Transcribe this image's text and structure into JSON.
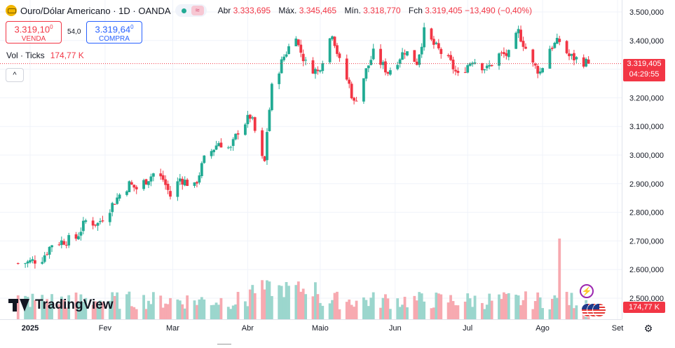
{
  "header": {
    "symbol_title": "Ouro/Dólar Americano · 1D · OANDA",
    "symbol_icon": "gold-bars-icon",
    "ohlc": [
      {
        "key": "Abr",
        "value": "3.333,695"
      },
      {
        "key": "Máx.",
        "value": "3.345,465"
      },
      {
        "key": "Mín.",
        "value": "3.318,770"
      },
      {
        "key": "Fch",
        "value": "3.319,405 −13,490 (−0,40%)"
      }
    ]
  },
  "trade": {
    "sell_price": "3.319,10",
    "sell_sup": "0",
    "sell_label": "VENDA",
    "spread": "54,0",
    "buy_price": "3.319,64",
    "buy_sup": "0",
    "buy_label": "COMPRA"
  },
  "volume_legend": {
    "label": "Vol · Ticks",
    "value": "174,77 K"
  },
  "price_scale": {
    "ticks": [
      "3.500,000",
      "3.400,000",
      "3.300,000",
      "3.200,000",
      "3.100,000",
      "3.000,000",
      "2.900,000",
      "2.800,000",
      "2.700,000",
      "2.600,000",
      "2.500,000"
    ],
    "last_price": "3.319,405",
    "countdown": "04:29:55",
    "volume_tag": "174,77 K"
  },
  "time_scale": {
    "ticks": [
      "2025",
      "Fev",
      "Mar",
      "Abr",
      "Maio",
      "Jun",
      "Jul",
      "Ago",
      "Set"
    ]
  },
  "brand": {
    "logo_text": "TradingView"
  },
  "colors": {
    "up": "#22ab94",
    "down": "#f23645",
    "vol_up": "#9bd6cd",
    "vol_down": "#f7a9b0",
    "grid": "#f0f3fa"
  },
  "chart_data": {
    "type": "candlestick",
    "title": "Ouro/Dólar Americano · 1D · OANDA",
    "ylim": [
      2500,
      3550
    ],
    "y_ticks": [
      2500,
      2600,
      2700,
      2800,
      2900,
      3000,
      3100,
      3200,
      3300,
      3400,
      3500
    ],
    "x_ticks": [
      "2025",
      "Fev",
      "Mar",
      "Abr",
      "Maio",
      "Jun",
      "Jul",
      "Ago",
      "Set"
    ],
    "grid": true,
    "month_anchors": [
      {
        "label": "2025",
        "date": "2025-01-01"
      },
      {
        "label": "Fev",
        "date": "2025-02-01"
      },
      {
        "label": "Mar",
        "date": "2025-03-01"
      },
      {
        "label": "Abr",
        "date": "2025-04-01"
      },
      {
        "label": "Maio",
        "date": "2025-05-01"
      },
      {
        "label": "Jun",
        "date": "2025-06-01"
      },
      {
        "label": "Jul",
        "date": "2025-07-01"
      },
      {
        "label": "Ago",
        "date": "2025-08-01"
      },
      {
        "label": "Set",
        "date": "2025-09-01"
      }
    ],
    "keypoints": [
      {
        "date": "2024-12-27",
        "close": 2622
      },
      {
        "date": "2024-12-31",
        "close": 2625
      },
      {
        "date": "2025-01-06",
        "close": 2640
      },
      {
        "date": "2025-01-10",
        "close": 2690
      },
      {
        "date": "2025-01-15",
        "close": 2700
      },
      {
        "date": "2025-01-20",
        "close": 2710
      },
      {
        "date": "2025-01-24",
        "close": 2770
      },
      {
        "date": "2025-01-29",
        "close": 2760
      },
      {
        "date": "2025-02-03",
        "close": 2815
      },
      {
        "date": "2025-02-07",
        "close": 2862
      },
      {
        "date": "2025-02-11",
        "close": 2898
      },
      {
        "date": "2025-02-14",
        "close": 2882
      },
      {
        "date": "2025-02-21",
        "close": 2935
      },
      {
        "date": "2025-02-25",
        "close": 2915
      },
      {
        "date": "2025-02-28",
        "close": 2857
      },
      {
        "date": "2025-03-04",
        "close": 2918
      },
      {
        "date": "2025-03-10",
        "close": 2888
      },
      {
        "date": "2025-03-14",
        "close": 2984
      },
      {
        "date": "2025-03-20",
        "close": 3045
      },
      {
        "date": "2025-03-25",
        "close": 3020
      },
      {
        "date": "2025-03-28",
        "close": 3085
      },
      {
        "date": "2025-04-02",
        "close": 3135
      },
      {
        "date": "2025-04-03",
        "close": 3115
      },
      {
        "date": "2025-04-07",
        "close": 2985
      },
      {
        "date": "2025-04-08",
        "close": 2975
      },
      {
        "date": "2025-04-09",
        "close": 3085
      },
      {
        "date": "2025-04-11",
        "close": 3235
      },
      {
        "date": "2025-04-16",
        "close": 3345
      },
      {
        "date": "2025-04-21",
        "close": 3425
      },
      {
        "date": "2025-04-22",
        "close": 3380
      },
      {
        "date": "2025-04-25",
        "close": 3320
      },
      {
        "date": "2025-04-30",
        "close": 3290
      },
      {
        "date": "2025-05-06",
        "close": 3430
      },
      {
        "date": "2025-05-09",
        "close": 3325
      },
      {
        "date": "2025-05-13",
        "close": 3245
      },
      {
        "date": "2025-05-15",
        "close": 3180
      },
      {
        "date": "2025-05-20",
        "close": 3295
      },
      {
        "date": "2025-05-23",
        "close": 3355
      },
      {
        "date": "2025-05-29",
        "close": 3290
      },
      {
        "date": "2025-06-05",
        "close": 3365
      },
      {
        "date": "2025-06-10",
        "close": 3325
      },
      {
        "date": "2025-06-13",
        "close": 3430
      },
      {
        "date": "2025-06-17",
        "close": 3385
      },
      {
        "date": "2025-06-24",
        "close": 3320
      },
      {
        "date": "2025-06-27",
        "close": 3275
      },
      {
        "date": "2025-07-03",
        "close": 3335
      },
      {
        "date": "2025-07-09",
        "close": 3300
      },
      {
        "date": "2025-07-14",
        "close": 3350
      },
      {
        "date": "2025-07-18",
        "close": 3350
      },
      {
        "date": "2025-07-22",
        "close": 3430
      },
      {
        "date": "2025-07-28",
        "close": 3315
      },
      {
        "date": "2025-07-31",
        "close": 3290
      },
      {
        "date": "2025-08-04",
        "close": 3375
      },
      {
        "date": "2025-08-08",
        "close": 3398
      },
      {
        "date": "2025-08-12",
        "close": 3345
      },
      {
        "date": "2025-08-15",
        "close": 3336
      },
      {
        "date": "2025-08-20",
        "close": 3319.405
      }
    ],
    "last_bar": {
      "open": 3333.695,
      "high": 3345.465,
      "low": 3318.77,
      "close": 3319.405,
      "change": -13.49,
      "change_pct": -0.4
    },
    "volume": {
      "last": "174,77 K",
      "max_spike_date": "2025-08-08"
    }
  }
}
